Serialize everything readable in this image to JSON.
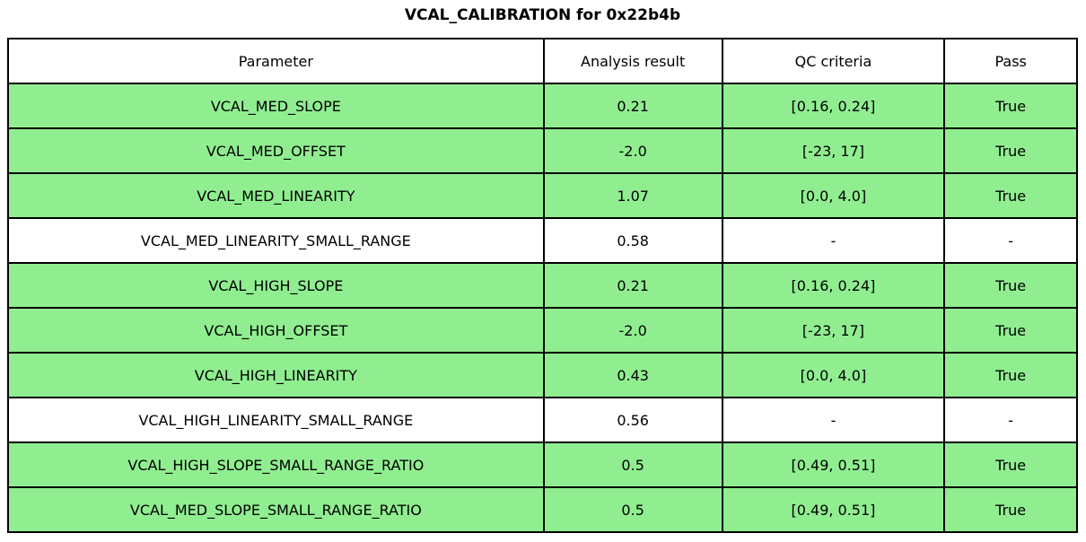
{
  "title": "VCAL_CALIBRATION for 0x22b4b",
  "colors": {
    "pass_green": "#90ee90",
    "na_white": "#ffffff",
    "border": "#000000",
    "text": "#000000"
  },
  "chart_data": {
    "type": "table",
    "title": "VCAL_CALIBRATION for 0x22b4b",
    "columns": [
      "Parameter",
      "Analysis result",
      "QC criteria",
      "Pass"
    ],
    "rows": [
      {
        "parameter": "VCAL_MED_SLOPE",
        "result": "0.21",
        "qc": "[0.16, 0.24]",
        "pass": "True",
        "highlight": true
      },
      {
        "parameter": "VCAL_MED_OFFSET",
        "result": "-2.0",
        "qc": "[-23, 17]",
        "pass": "True",
        "highlight": true
      },
      {
        "parameter": "VCAL_MED_LINEARITY",
        "result": "1.07",
        "qc": "[0.0, 4.0]",
        "pass": "True",
        "highlight": true
      },
      {
        "parameter": "VCAL_MED_LINEARITY_SMALL_RANGE",
        "result": "0.58",
        "qc": "-",
        "pass": "-",
        "highlight": false
      },
      {
        "parameter": "VCAL_HIGH_SLOPE",
        "result": "0.21",
        "qc": "[0.16, 0.24]",
        "pass": "True",
        "highlight": true
      },
      {
        "parameter": "VCAL_HIGH_OFFSET",
        "result": "-2.0",
        "qc": "[-23, 17]",
        "pass": "True",
        "highlight": true
      },
      {
        "parameter": "VCAL_HIGH_LINEARITY",
        "result": "0.43",
        "qc": "[0.0, 4.0]",
        "pass": "True",
        "highlight": true
      },
      {
        "parameter": "VCAL_HIGH_LINEARITY_SMALL_RANGE",
        "result": "0.56",
        "qc": "-",
        "pass": "-",
        "highlight": false
      },
      {
        "parameter": "VCAL_HIGH_SLOPE_SMALL_RANGE_RATIO",
        "result": "0.5",
        "qc": "[0.49, 0.51]",
        "pass": "True",
        "highlight": true
      },
      {
        "parameter": "VCAL_MED_SLOPE_SMALL_RANGE_RATIO",
        "result": "0.5",
        "qc": "[0.49, 0.51]",
        "pass": "True",
        "highlight": true
      }
    ]
  }
}
